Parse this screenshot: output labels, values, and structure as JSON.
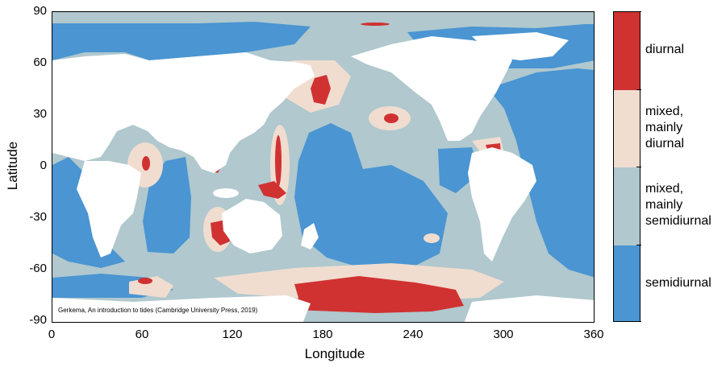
{
  "axes": {
    "xlabel": "Longitude",
    "ylabel": "Latitude",
    "xlim": [
      0,
      360
    ],
    "ylim": [
      -90,
      90
    ],
    "x_ticks": [
      "0",
      "60",
      "120",
      "180",
      "240",
      "300",
      "360"
    ],
    "y_ticks": [
      "90",
      "60",
      "30",
      "0",
      "-30",
      "-60",
      "-90"
    ]
  },
  "credit": "Gerkema, An introduction to tides (Cambridge University Press, 2019)",
  "legend": {
    "categories": [
      {
        "id": "diurnal",
        "label": "diurnal",
        "color": "#d03232"
      },
      {
        "id": "mixed_diurnal",
        "label": "mixed, mainly diurnal",
        "color": "#f0ddd0"
      },
      {
        "id": "mixed_semidiurnal",
        "label": "mixed, mainly semidiurnal",
        "color": "#b0c8ce"
      },
      {
        "id": "semidiurnal",
        "label": "semidiurnal",
        "color": "#4a95d2"
      }
    ],
    "label_lines": {
      "diurnal": [
        "diurnal"
      ],
      "mixed_diurnal": [
        "mixed,",
        "mainly",
        "diurnal"
      ],
      "mixed_semidiurnal": [
        "mixed,",
        "mainly",
        "semidiurnal"
      ],
      "semidiurnal": [
        "semidiurnal"
      ]
    }
  },
  "colors": {
    "land": "#ffffff",
    "frame": "#000000"
  }
}
